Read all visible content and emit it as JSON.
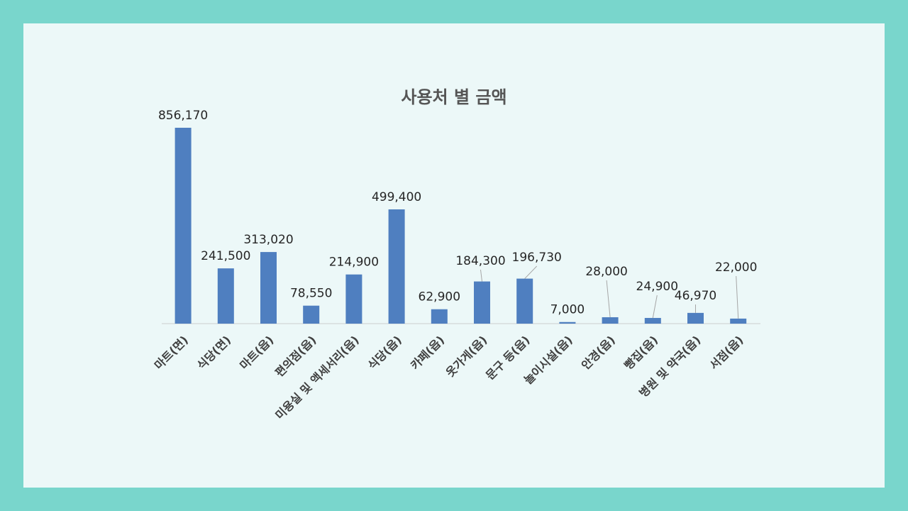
{
  "chart_data": {
    "type": "bar",
    "title": "사용처 별 금액",
    "xlabel": "",
    "ylabel": "",
    "ylim": [
      0,
      900000
    ],
    "grid": false,
    "legend": "none",
    "bar_color": "#4f7fc0",
    "categories": [
      "마트(면)",
      "식당(면)",
      "마트(읍)",
      "편의점(읍)",
      "미용실 및 액세서리(읍)",
      "식당(읍)",
      "카페(읍)",
      "옷가게(읍)",
      "문구 등(읍)",
      "놀이시설(읍)",
      "안경(읍)",
      "빵집(읍)",
      "병원 및 약국(읍)",
      "서점(읍)"
    ],
    "values": [
      856170,
      241500,
      313020,
      78550,
      214900,
      499400,
      62900,
      184300,
      196730,
      7000,
      28000,
      24900,
      46970,
      22000
    ],
    "data_labels": [
      "856,170",
      "241,500",
      "313,020",
      "78,550",
      "214,900",
      "499,400",
      "62,900",
      "184,300",
      "196,730",
      "7,000",
      "28,000",
      "24,900",
      "46,970",
      "22,000"
    ]
  }
}
